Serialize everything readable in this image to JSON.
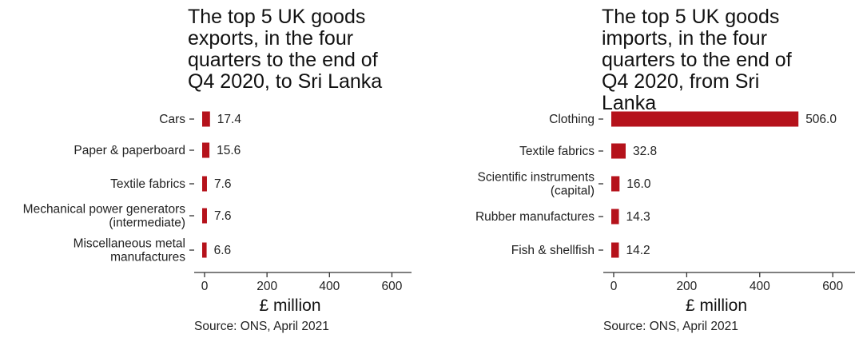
{
  "accent_color": "#b5121b",
  "chart_data": [
    {
      "type": "bar",
      "orientation": "horizontal",
      "title": "The top 5 UK goods exports, in the four quarters to the end of Q4 2020, to Sri Lanka",
      "categories": [
        [
          "Cars"
        ],
        [
          "Paper & paperboard"
        ],
        [
          "Textile fabrics"
        ],
        [
          "Mechanical power generators",
          "(intermediate)"
        ],
        [
          "Miscellaneous metal",
          "manufactures"
        ]
      ],
      "values": [
        17.4,
        15.6,
        7.6,
        7.6,
        6.6
      ],
      "value_labels": [
        "17.4",
        "15.6",
        "7.6",
        "7.6",
        "6.6"
      ],
      "xlabel": "£ million",
      "xlim": [
        0,
        650
      ],
      "xticks": [
        0,
        200,
        400,
        600
      ],
      "source": "Source: ONS, April 2021"
    },
    {
      "type": "bar",
      "orientation": "horizontal",
      "title": "The top 5 UK goods imports, in the four quarters to the end of Q4 2020, from Sri Lanka",
      "categories": [
        [
          "Clothing"
        ],
        [
          "Textile fabrics"
        ],
        [
          "Scientific instruments",
          "(capital)"
        ],
        [
          "Rubber manufactures"
        ],
        [
          "Fish & shellfish"
        ]
      ],
      "values": [
        506.0,
        32.8,
        16.0,
        14.3,
        14.2
      ],
      "value_labels": [
        "506.0",
        "32.8",
        "16.0",
        "14.3",
        "14.2"
      ],
      "xlabel": "£ million",
      "xlim": [
        0,
        650
      ],
      "xticks": [
        0,
        200,
        400,
        600
      ],
      "source": "Source: ONS, April 2021"
    }
  ]
}
